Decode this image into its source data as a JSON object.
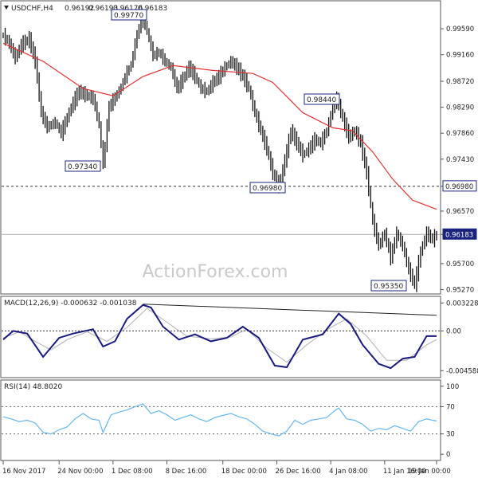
{
  "chart_data": [
    {
      "type": "ohlc",
      "panel": "price",
      "symbol_line": {
        "symbol": "USDCHF,H4",
        "open": "0.96192",
        "high": "0.96193",
        "low": "0.96176",
        "close": "0.96183"
      },
      "watermark": "ActionForex.com",
      "y_ticks": [
        "0.99590",
        "0.99160",
        "0.98720",
        "0.98290",
        "0.97860",
        "0.97430",
        "0.96980",
        "0.96570",
        "0.96183",
        "0.95700",
        "0.95270"
      ],
      "y_tick_values": [
        0.9959,
        0.9916,
        0.9872,
        0.9829,
        0.9786,
        0.9743,
        0.9698,
        0.9657,
        0.96183,
        0.957,
        0.9527
      ],
      "ylim": [
        0.9521,
        1.0004
      ],
      "horizontal_lines": [
        {
          "label": "0.96980",
          "value": 0.9698,
          "style": "dashed"
        },
        {
          "label": "0.96183",
          "value": 0.96183,
          "style": "solid"
        }
      ],
      "pivot_labels": [
        {
          "text": "0.99770",
          "value": 0.9977
        },
        {
          "text": "0.97340",
          "value": 0.9734
        },
        {
          "text": "0.96980",
          "value": 0.9698
        },
        {
          "text": "0.98440",
          "value": 0.9844
        },
        {
          "text": "0.95350",
          "value": 0.9535
        }
      ],
      "price_path": [
        [
          0,
          0.9948
        ],
        [
          3,
          0.9935
        ],
        [
          6,
          0.991
        ],
        [
          9,
          0.9933
        ],
        [
          13,
          0.9942
        ],
        [
          16,
          0.9905
        ],
        [
          19,
          0.982
        ],
        [
          22,
          0.9796
        ],
        [
          26,
          0.9804
        ],
        [
          29,
          0.9786
        ],
        [
          32,
          0.9812
        ],
        [
          35,
          0.9837
        ],
        [
          38,
          0.9855
        ],
        [
          42,
          0.9848
        ],
        [
          45,
          0.9844
        ],
        [
          48,
          0.98
        ],
        [
          50,
          0.9734
        ],
        [
          53,
          0.983
        ],
        [
          56,
          0.9845
        ],
        [
          59,
          0.9862
        ],
        [
          61,
          0.988
        ],
        [
          64,
          0.99
        ],
        [
          67,
          0.995
        ],
        [
          70,
          0.9977
        ],
        [
          72,
          0.9955
        ],
        [
          75,
          0.9915
        ],
        [
          78,
          0.992
        ],
        [
          81,
          0.9905
        ],
        [
          84,
          0.9895
        ],
        [
          87,
          0.986
        ],
        [
          90,
          0.9876
        ],
        [
          93,
          0.9895
        ],
        [
          96,
          0.988
        ],
        [
          99,
          0.986
        ],
        [
          102,
          0.9855
        ],
        [
          105,
          0.987
        ],
        [
          108,
          0.988
        ],
        [
          111,
          0.9895
        ],
        [
          114,
          0.9905
        ],
        [
          117,
          0.9895
        ],
        [
          120,
          0.988
        ],
        [
          123,
          0.986
        ],
        [
          126,
          0.982
        ],
        [
          129,
          0.979
        ],
        [
          132,
          0.976
        ],
        [
          135,
          0.972
        ],
        [
          138,
          0.9698
        ],
        [
          141,
          0.974
        ],
        [
          144,
          0.979
        ],
        [
          147,
          0.977
        ],
        [
          150,
          0.975
        ],
        [
          153,
          0.976
        ],
        [
          156,
          0.9775
        ],
        [
          159,
          0.977
        ],
        [
          162,
          0.979
        ],
        [
          165,
          0.983
        ],
        [
          167,
          0.9844
        ],
        [
          170,
          0.981
        ],
        [
          173,
          0.978
        ],
        [
          176,
          0.979
        ],
        [
          179,
          0.977
        ],
        [
          182,
          0.972
        ],
        [
          185,
          0.964
        ],
        [
          188,
          0.96
        ],
        [
          191,
          0.962
        ],
        [
          194,
          0.958
        ],
        [
          197,
          0.962
        ],
        [
          200,
          0.96
        ],
        [
          203,
          0.956
        ],
        [
          206,
          0.9535
        ],
        [
          209,
          0.959
        ],
        [
          212,
          0.962
        ],
        [
          215,
          0.961
        ],
        [
          217,
          0.96183
        ]
      ],
      "moving_average_path": [
        [
          0,
          0.9935
        ],
        [
          20,
          0.9905
        ],
        [
          40,
          0.986
        ],
        [
          55,
          0.9848
        ],
        [
          70,
          0.988
        ],
        [
          85,
          0.9898
        ],
        [
          105,
          0.989
        ],
        [
          125,
          0.9885
        ],
        [
          135,
          0.987
        ],
        [
          150,
          0.982
        ],
        [
          165,
          0.9795
        ],
        [
          175,
          0.979
        ],
        [
          185,
          0.9755
        ],
        [
          195,
          0.971
        ],
        [
          205,
          0.9675
        ],
        [
          217,
          0.966
        ]
      ],
      "moving_average_color": "#e03030",
      "price_color": "#111111"
    },
    {
      "type": "line",
      "panel": "macd",
      "title": "MACD(12,26,9) -0.000632 -0.001038",
      "y_ticks": [
        "0.003228",
        "0.00",
        "-0.004588"
      ],
      "y_tick_values": [
        0.003228,
        0.0,
        -0.004588
      ],
      "ylim": [
        -0.0053,
        0.0039
      ],
      "zero_line_style": "dotted",
      "series": [
        {
          "name": "MACD",
          "color": "#1a1a80",
          "values": [
            [
              0,
              -0.001
            ],
            [
              5,
              0.0
            ],
            [
              12,
              -0.0003
            ],
            [
              20,
              -0.003
            ],
            [
              28,
              -0.0008
            ],
            [
              35,
              -0.0003
            ],
            [
              45,
              0.0002
            ],
            [
              50,
              -0.0018
            ],
            [
              56,
              -0.0012
            ],
            [
              62,
              0.0014
            ],
            [
              70,
              0.003
            ],
            [
              74,
              0.0027
            ],
            [
              80,
              0.0005
            ],
            [
              88,
              -0.001
            ],
            [
              96,
              -0.0004
            ],
            [
              104,
              -0.0012
            ],
            [
              112,
              -0.0008
            ],
            [
              120,
              0.0005
            ],
            [
              128,
              -0.0008
            ],
            [
              136,
              -0.004
            ],
            [
              142,
              -0.0042
            ],
            [
              150,
              -0.001
            ],
            [
              160,
              -0.0004
            ],
            [
              168,
              0.002
            ],
            [
              174,
              0.0008
            ],
            [
              180,
              -0.0016
            ],
            [
              188,
              -0.0038
            ],
            [
              194,
              -0.0043
            ],
            [
              200,
              -0.0032
            ],
            [
              206,
              -0.003
            ],
            [
              212,
              -0.0006
            ],
            [
              217,
              -0.0006
            ]
          ]
        },
        {
          "name": "Signal",
          "color": "#b0b0b0",
          "values": [
            [
              0,
              -0.0008
            ],
            [
              8,
              -0.0001
            ],
            [
              16,
              -0.0012
            ],
            [
              24,
              -0.0022
            ],
            [
              32,
              -0.001
            ],
            [
              42,
              -0.0001
            ],
            [
              52,
              -0.0012
            ],
            [
              62,
              0.0004
            ],
            [
              72,
              0.0026
            ],
            [
              82,
              0.001
            ],
            [
              92,
              -0.0006
            ],
            [
              104,
              -0.0009
            ],
            [
              114,
              -0.0007
            ],
            [
              122,
              0.0002
            ],
            [
              132,
              -0.002
            ],
            [
              142,
              -0.0036
            ],
            [
              152,
              -0.0016
            ],
            [
              164,
              0.0004
            ],
            [
              172,
              0.0014
            ],
            [
              182,
              -0.0006
            ],
            [
              192,
              -0.0034
            ],
            [
              202,
              -0.0034
            ],
            [
              212,
              -0.0016
            ],
            [
              217,
              -0.001
            ]
          ]
        }
      ],
      "trendline": [
        [
          70,
          0.0031
        ],
        [
          217,
          0.0018
        ]
      ]
    },
    {
      "type": "line",
      "panel": "rsi",
      "title": "RSI(14) 48.8020",
      "y_ticks": [
        "100",
        "70",
        "30",
        "0"
      ],
      "y_tick_values": [
        100,
        70,
        30,
        0
      ],
      "ylim": [
        -8,
        108
      ],
      "reference_lines": [
        70,
        30
      ],
      "series": [
        {
          "name": "RSI",
          "color": "#66b8e8",
          "values": [
            [
              0,
              55
            ],
            [
              4,
              52
            ],
            [
              8,
              48
            ],
            [
              12,
              50
            ],
            [
              16,
              46
            ],
            [
              20,
              32
            ],
            [
              24,
              30
            ],
            [
              28,
              36
            ],
            [
              32,
              40
            ],
            [
              36,
              52
            ],
            [
              40,
              60
            ],
            [
              44,
              52
            ],
            [
              48,
              50
            ],
            [
              50,
              32
            ],
            [
              54,
              58
            ],
            [
              58,
              62
            ],
            [
              62,
              65
            ],
            [
              66,
              70
            ],
            [
              70,
              74
            ],
            [
              74,
              60
            ],
            [
              78,
              64
            ],
            [
              82,
              58
            ],
            [
              86,
              50
            ],
            [
              90,
              54
            ],
            [
              94,
              58
            ],
            [
              98,
              52
            ],
            [
              102,
              48
            ],
            [
              106,
              54
            ],
            [
              110,
              57
            ],
            [
              114,
              60
            ],
            [
              118,
              55
            ],
            [
              122,
              52
            ],
            [
              126,
              44
            ],
            [
              130,
              34
            ],
            [
              134,
              30
            ],
            [
              138,
              27
            ],
            [
              142,
              34
            ],
            [
              146,
              50
            ],
            [
              150,
              44
            ],
            [
              154,
              50
            ],
            [
              158,
              52
            ],
            [
              162,
              54
            ],
            [
              166,
              64
            ],
            [
              168,
              68
            ],
            [
              172,
              52
            ],
            [
              176,
              50
            ],
            [
              180,
              44
            ],
            [
              184,
              34
            ],
            [
              188,
              38
            ],
            [
              192,
              36
            ],
            [
              196,
              42
            ],
            [
              200,
              38
            ],
            [
              204,
              34
            ],
            [
              208,
              48
            ],
            [
              212,
              52
            ],
            [
              215,
              50
            ],
            [
              217,
              49
            ]
          ]
        }
      ]
    }
  ],
  "x_axis": {
    "labels": [
      "16 Nov 2017",
      "24 Nov 00:00",
      "1 Dec 08:00",
      "8 Dec 16:00",
      "18 Dec 00:00",
      "26 Dec 16:00",
      "4 Jan 08:00",
      "11 Jan 16:00",
      "19 Jan 00:00"
    ],
    "label_bar_index": [
      0,
      28,
      55,
      82,
      110,
      137,
      164,
      191,
      217
    ]
  },
  "colors": {
    "price_highlight_box": "#1a237e",
    "axis": "#444444",
    "grid": "#dddddd"
  }
}
